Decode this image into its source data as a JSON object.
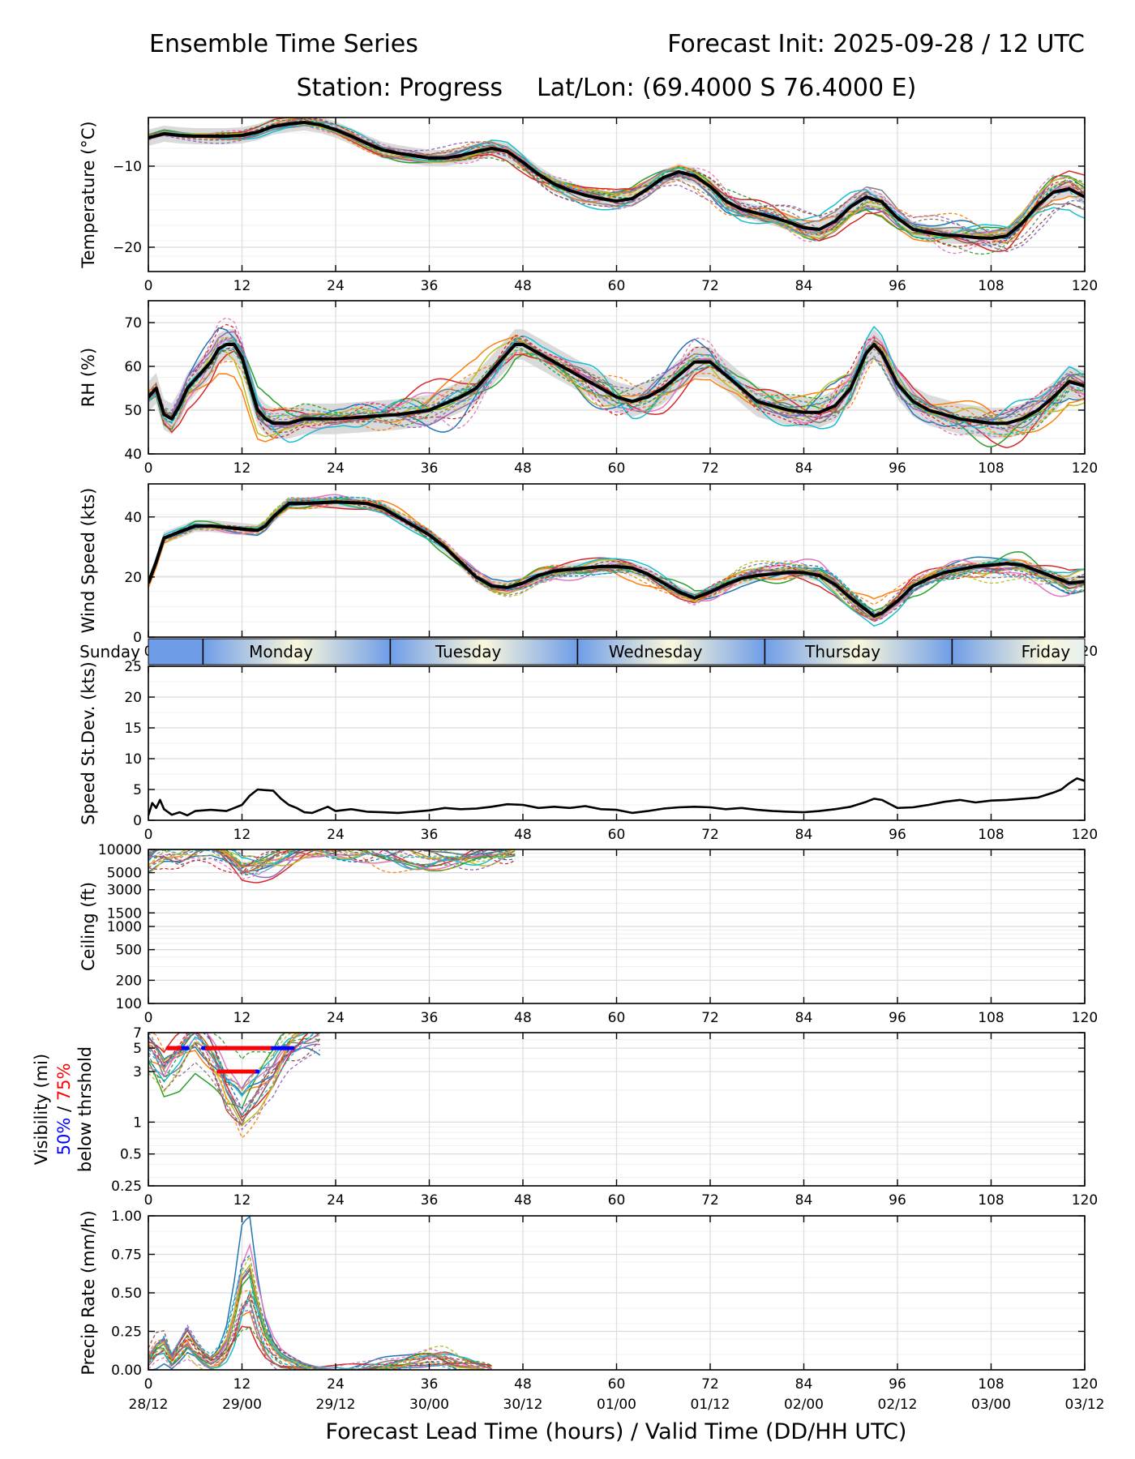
{
  "header": {
    "title": "Ensemble Time Series",
    "init": "Forecast Init: 2025-09-28 / 12 UTC",
    "station": "Station: Progress",
    "latlon": "Lat/Lon: (69.4000 S 76.4000 E)"
  },
  "colors": {
    "members": [
      "#1f77b4",
      "#ff7f0e",
      "#2ca02c",
      "#d62728",
      "#9467bd",
      "#8c564b",
      "#e377c2",
      "#7f7f7f",
      "#bcbd22",
      "#17becf"
    ],
    "mean": "#000000",
    "spread_fill": "#d3d3d3",
    "vis_50": "#0000ff",
    "vis_75": "#ff0000",
    "day_blue": "#6f9de8",
    "day_cream": "#fbf8dc"
  },
  "x_ticks": [
    0,
    12,
    24,
    36,
    48,
    60,
    72,
    84,
    96,
    108,
    120
  ],
  "valid_time_labels": [
    "28/12",
    "29/00",
    "29/12",
    "30/00",
    "30/12",
    "01/00",
    "01/12",
    "02/00",
    "02/12",
    "03/00",
    "03/12"
  ],
  "xlabel": "Forecast Lead Time (hours) / Valid Time (DD/HH UTC)",
  "day_band": {
    "days": [
      {
        "name": "Sunday",
        "center": -0.5
      },
      {
        "name": "Monday",
        "center": 17
      },
      {
        "name": "Tuesday",
        "center": 41
      },
      {
        "name": "Wednesday",
        "center": 65
      },
      {
        "name": "Thursday",
        "center": 89
      },
      {
        "name": "Friday",
        "center": 115
      }
    ],
    "boundaries": [
      7,
      31,
      55,
      79,
      103
    ]
  },
  "chart_data": [
    {
      "type": "line",
      "id": "temperature",
      "ylabel": "Temperature (°C)",
      "ylim": [
        -23,
        -4
      ],
      "yticks": [
        -20,
        -10
      ],
      "ytick_labels": [
        "−20",
        "−10"
      ],
      "members": 20,
      "mean": {
        "x": [
          0,
          2,
          4,
          6,
          8,
          10,
          12,
          14,
          16,
          18,
          20,
          22,
          24,
          26,
          28,
          30,
          32,
          34,
          36,
          38,
          40,
          42,
          44,
          46,
          48,
          50,
          52,
          54,
          56,
          58,
          60,
          62,
          64,
          66,
          68,
          70,
          72,
          74,
          76,
          78,
          80,
          82,
          84,
          86,
          88,
          90,
          92,
          94,
          96,
          98,
          100,
          102,
          104,
          106,
          108,
          110,
          112,
          114,
          116,
          118,
          120
        ],
        "y": [
          -6.5,
          -6.0,
          -6.2,
          -6.3,
          -6.3,
          -6.3,
          -6.2,
          -5.8,
          -5.1,
          -4.8,
          -4.6,
          -4.9,
          -5.5,
          -6.3,
          -7.2,
          -8.0,
          -8.4,
          -8.7,
          -9.0,
          -9.0,
          -8.7,
          -8.2,
          -7.8,
          -8.2,
          -9.5,
          -11.0,
          -12.2,
          -13.0,
          -13.6,
          -14.0,
          -14.3,
          -14.0,
          -12.8,
          -11.4,
          -10.7,
          -11.2,
          -12.5,
          -14.3,
          -15.3,
          -15.8,
          -16.3,
          -16.9,
          -17.6,
          -17.8,
          -16.8,
          -15.0,
          -13.8,
          -14.4,
          -16.4,
          -17.8,
          -18.2,
          -18.5,
          -18.6,
          -18.8,
          -18.9,
          -18.6,
          -17.0,
          -14.8,
          -13.2,
          -12.8,
          -13.8
        ]
      },
      "spread": 1.0
    },
    {
      "type": "line",
      "id": "rh",
      "ylabel": "RH (%)",
      "ylim": [
        40,
        75
      ],
      "yticks": [
        40,
        50,
        60,
        70
      ],
      "ytick_labels": [
        "40",
        "50",
        "60",
        "70"
      ],
      "members": 20,
      "mean": {
        "x": [
          0,
          1,
          2,
          3,
          4,
          5,
          6,
          7,
          8,
          9,
          10,
          11,
          12,
          13,
          14,
          15,
          16,
          18,
          20,
          24,
          28,
          32,
          36,
          40,
          42,
          44,
          46,
          47,
          48,
          50,
          52,
          54,
          56,
          58,
          60,
          62,
          64,
          66,
          68,
          70,
          72,
          74,
          76,
          78,
          80,
          82,
          84,
          86,
          88,
          90,
          92,
          93,
          94,
          96,
          98,
          100,
          102,
          104,
          106,
          108,
          110,
          112,
          114,
          116,
          118,
          120
        ],
        "y": [
          53,
          55,
          49,
          48,
          51,
          55,
          57,
          59,
          61,
          64,
          65,
          65,
          62,
          56,
          50,
          48,
          47,
          47,
          48,
          48,
          48.5,
          49,
          50,
          53,
          55,
          59,
          63,
          65,
          65,
          63,
          61,
          59,
          57,
          55,
          53,
          52,
          53,
          55,
          58,
          61,
          61,
          58,
          55,
          52,
          51,
          50,
          49.5,
          49.5,
          51,
          55,
          63,
          65,
          63,
          56,
          52,
          50,
          49,
          48,
          47.5,
          47,
          47,
          48,
          50,
          53,
          56.5,
          55.5
        ]
      },
      "spread": 3.5
    },
    {
      "type": "line",
      "id": "wind",
      "ylabel": "Wind Speed (kts)",
      "ylim": [
        0,
        51
      ],
      "yticks": [
        0,
        20,
        40
      ],
      "ytick_labels": [
        "0",
        "20",
        "40"
      ],
      "members": 20,
      "mean": {
        "x": [
          0,
          1,
          2,
          4,
          6,
          8,
          10,
          12,
          14,
          15,
          16,
          18,
          20,
          24,
          28,
          30,
          32,
          34,
          36,
          38,
          40,
          42,
          44,
          46,
          48,
          50,
          52,
          54,
          56,
          58,
          60,
          62,
          64,
          66,
          68,
          70,
          72,
          74,
          76,
          78,
          80,
          82,
          84,
          86,
          88,
          90,
          92,
          93,
          94,
          96,
          98,
          100,
          102,
          104,
          106,
          108,
          110,
          112,
          114,
          116,
          118,
          120
        ],
        "y": [
          18,
          25,
          33,
          35,
          37,
          37,
          36.5,
          36,
          35.5,
          37,
          40,
          44.5,
          44.5,
          45,
          44.5,
          43,
          40,
          37,
          34,
          30,
          25,
          20,
          17,
          16.5,
          18,
          20.5,
          22,
          22.5,
          23,
          23.5,
          23.5,
          23,
          21,
          18,
          15,
          13,
          15,
          17.5,
          19.5,
          20.5,
          21,
          21.5,
          21.5,
          20.5,
          17.5,
          13,
          9,
          7,
          8,
          12,
          17,
          19.5,
          21.5,
          22.5,
          23.5,
          24,
          24.5,
          24,
          22,
          20,
          18,
          18.5
        ]
      },
      "spread": 2.0
    },
    {
      "type": "line",
      "id": "speed_std",
      "ylabel": "Speed St.Dev. (kts)",
      "ylim": [
        0,
        25
      ],
      "yticks": [
        0,
        5,
        10,
        15,
        20,
        25
      ],
      "ytick_labels": [
        "0",
        "5",
        "10",
        "15",
        "20",
        "25"
      ],
      "series": {
        "x": [
          0,
          0.5,
          1,
          1.5,
          2,
          3,
          4,
          5,
          6,
          8,
          10,
          11,
          12,
          13,
          14,
          15,
          16,
          17,
          18,
          19,
          20,
          21,
          22,
          23,
          24,
          26,
          28,
          30,
          32,
          34,
          36,
          38,
          40,
          42,
          44,
          46,
          48,
          50,
          52,
          54,
          56,
          58,
          60,
          62,
          64,
          66,
          68,
          70,
          72,
          74,
          76,
          78,
          80,
          82,
          84,
          86,
          88,
          90,
          92,
          93,
          94,
          96,
          98,
          100,
          102,
          104,
          106,
          108,
          110,
          112,
          114,
          116,
          117,
          118,
          119,
          120
        ],
        "y": [
          0.8,
          2.8,
          2.0,
          3.3,
          1.8,
          0.9,
          1.3,
          0.8,
          1.5,
          1.7,
          1.5,
          2.0,
          2.5,
          4.0,
          5.0,
          4.9,
          4.8,
          3.5,
          2.5,
          2.0,
          1.3,
          1.2,
          1.7,
          2.2,
          1.5,
          1.8,
          1.4,
          1.3,
          1.2,
          1.4,
          1.6,
          2.0,
          1.8,
          1.9,
          2.2,
          2.6,
          2.5,
          2.0,
          2.2,
          2.0,
          2.3,
          1.8,
          1.7,
          1.2,
          1.5,
          1.9,
          2.1,
          2.2,
          2.1,
          1.8,
          2.0,
          1.7,
          1.5,
          1.4,
          1.3,
          1.5,
          1.8,
          2.2,
          3.0,
          3.5,
          3.3,
          2.0,
          2.1,
          2.5,
          3.0,
          3.3,
          2.9,
          3.2,
          3.3,
          3.5,
          3.7,
          4.5,
          5.0,
          6.0,
          6.8,
          6.4
        ]
      }
    },
    {
      "type": "line",
      "id": "ceiling",
      "ylabel": "Ceiling (ft)",
      "scale": "log",
      "ylim": [
        100,
        10000
      ],
      "yticks": [
        100,
        200,
        500,
        1000,
        1500,
        3000,
        5000,
        10000
      ],
      "ytick_labels": [
        "100",
        "200",
        "500",
        "1000",
        "1500",
        "3000",
        "5000",
        "10000"
      ],
      "members": 20,
      "mean": {
        "x": [
          0,
          2,
          4,
          6,
          8,
          10,
          12,
          14,
          16,
          18,
          20,
          22,
          24,
          28,
          32,
          34,
          36,
          38,
          40,
          42,
          44,
          46,
          47
        ],
        "y": [
          7000,
          9000,
          8500,
          10000,
          10000,
          8000,
          5500,
          6000,
          7000,
          8500,
          10000,
          10000,
          10000,
          10000,
          9000,
          8500,
          8000,
          8000,
          8000,
          8500,
          9000,
          9500,
          10000
        ]
      }
    },
    {
      "type": "line",
      "id": "visibility",
      "ylabel": "Visibility (mi)",
      "legend": [
        "50%",
        "/",
        "75%",
        "below thrshold"
      ],
      "scale": "log",
      "ylim": [
        0.25,
        7
      ],
      "yticks": [
        0.25,
        0.5,
        1,
        3,
        5,
        7
      ],
      "ytick_labels": [
        "0.25",
        "0.5",
        "1",
        "3",
        "5",
        "7"
      ],
      "members": 20,
      "mean": {
        "x": [
          0,
          2,
          4,
          6,
          8,
          10,
          12,
          14,
          16,
          18,
          20,
          22
        ],
        "y": [
          5,
          3,
          4,
          6,
          4,
          2,
          1.3,
          2,
          3,
          5,
          6,
          7
        ]
      },
      "threshold_bars": [
        {
          "level": "50%",
          "y": 5,
          "x_start": 2.5,
          "x_end": 5.0
        },
        {
          "level": "75%",
          "y": 5,
          "x_start": 2.5,
          "x_end": 4.0
        },
        {
          "level": "50%",
          "y": 5,
          "x_start": 7.0,
          "x_end": 18.5
        },
        {
          "level": "75%",
          "y": 5,
          "x_start": 7.5,
          "x_end": 15.5
        },
        {
          "level": "50%",
          "y": 3,
          "x_start": 9.0,
          "x_end": 14.0
        },
        {
          "level": "75%",
          "y": 3,
          "x_start": 9.0,
          "x_end": 13.5
        }
      ]
    },
    {
      "type": "line",
      "id": "precip",
      "ylabel": "Precip Rate (mm/h)",
      "ylim": [
        0,
        1
      ],
      "yticks": [
        0,
        0.25,
        0.5,
        0.75,
        1
      ],
      "ytick_labels": [
        "0.00",
        "0.25",
        "0.50",
        "0.75",
        "1.00"
      ],
      "members": 20,
      "mean": {
        "x": [
          0,
          1,
          2,
          3,
          4,
          5,
          6,
          7,
          8,
          9,
          10,
          11,
          12,
          13,
          14,
          15,
          16,
          17,
          18,
          20,
          22,
          24,
          28,
          32,
          34,
          36,
          38,
          40,
          42,
          44
        ],
        "y": [
          0.05,
          0.12,
          0.15,
          0.06,
          0.12,
          0.18,
          0.12,
          0.08,
          0.05,
          0.08,
          0.15,
          0.3,
          0.5,
          0.55,
          0.35,
          0.2,
          0.12,
          0.07,
          0.05,
          0.02,
          0.0,
          0.0,
          0.01,
          0.04,
          0.06,
          0.08,
          0.07,
          0.04,
          0.02,
          0.0
        ]
      }
    }
  ]
}
